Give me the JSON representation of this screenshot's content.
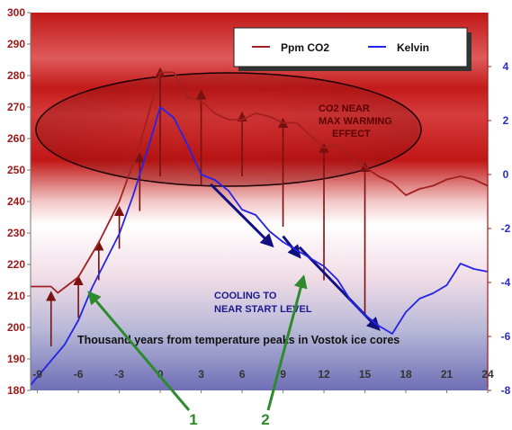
{
  "chart_data": {
    "type": "line",
    "title": "Thousand years from temperature peaks in Vostok ice cores",
    "x_ticks": [
      -9,
      -6,
      -3,
      0,
      3,
      6,
      9,
      12,
      15,
      18,
      21,
      24
    ],
    "xlim": [
      -9.5,
      24
    ],
    "left_axis": {
      "ylim": [
        180,
        300
      ],
      "ticks": [
        180,
        190,
        200,
        210,
        220,
        230,
        240,
        250,
        260,
        270,
        280,
        290,
        300
      ]
    },
    "right_axis": {
      "ylim": [
        -8,
        6
      ],
      "ticks": [
        -8,
        -6,
        -4,
        -2,
        0,
        2,
        4
      ]
    },
    "series": [
      {
        "name": "Ppm CO2",
        "axis": "left",
        "color": "#a32020",
        "x": [
          -9.5,
          -8,
          -7.5,
          -6,
          -4.5,
          -3,
          -1.5,
          0,
          1,
          2,
          3,
          4,
          5,
          6,
          7,
          8,
          9,
          10,
          11,
          12,
          13,
          14,
          15,
          16,
          17,
          18,
          19,
          20,
          21,
          22,
          23,
          24
        ],
        "y": [
          213,
          213,
          211,
          216,
          227,
          240,
          258,
          281,
          281,
          273,
          272,
          268,
          266,
          266,
          268,
          267,
          265,
          265,
          261,
          257,
          258,
          254,
          251,
          248,
          246,
          242,
          244,
          245,
          247,
          248,
          247,
          245
        ]
      },
      {
        "name": "Kelvin",
        "axis": "right",
        "color": "#2424e6",
        "x": [
          -9.5,
          -8,
          -7,
          -6,
          -5,
          -4,
          -3,
          -2,
          -1,
          0,
          1,
          2,
          3,
          4,
          5,
          6,
          7,
          8,
          9,
          10,
          11,
          12,
          13,
          14,
          15,
          16,
          17,
          18,
          19,
          20,
          21,
          22,
          23,
          24
        ],
        "y": [
          -7.8,
          -6.9,
          -6.3,
          -5.4,
          -4.2,
          -3.2,
          -2.2,
          -0.8,
          0.8,
          2.5,
          2.1,
          1.1,
          0,
          -0.2,
          -0.6,
          -1.3,
          -1.5,
          -2.1,
          -2.5,
          -2.8,
          -3.1,
          -3.4,
          -3.9,
          -4.7,
          -5.2,
          -5.6,
          -5.9,
          -5.1,
          -4.6,
          -4.4,
          -4.1,
          -3.3,
          -3.5,
          -3.6
        ]
      }
    ],
    "red_arrows": [
      {
        "x": -8,
        "from": 194,
        "to": 211
      },
      {
        "x": -6,
        "from": 203,
        "to": 216
      },
      {
        "x": -4.5,
        "from": 215,
        "to": 227
      },
      {
        "x": -3,
        "from": 225,
        "to": 238
      },
      {
        "x": -1.5,
        "from": 237,
        "to": 255
      },
      {
        "x": 0,
        "from": 248,
        "to": 282
      },
      {
        "x": 3,
        "from": 245,
        "to": 275
      },
      {
        "x": 6,
        "from": 248,
        "to": 268
      },
      {
        "x": 9,
        "from": 232,
        "to": 266
      },
      {
        "x": 12,
        "from": 215,
        "to": 258
      },
      {
        "x": 15,
        "from": 204,
        "to": 252
      }
    ],
    "cooling_arrows": [
      {
        "from": [
          3.7,
          245.5
        ],
        "to": [
          8.2,
          226
        ]
      },
      {
        "from": [
          9,
          229
        ],
        "to": [
          10.2,
          222.5
        ]
      },
      {
        "from": [
          10.2,
          225.5
        ],
        "to": [
          16,
          199.5
        ]
      }
    ],
    "callouts": [
      {
        "label": "1",
        "tip": [
          -5.2,
          211
        ]
      },
      {
        "label": "2",
        "tip": [
          10.5,
          216
        ]
      }
    ],
    "legend": {
      "entries": [
        "Ppm CO2",
        "Kelvin"
      ]
    },
    "annotations": {
      "co2_note_line1": "CO2 NEAR",
      "co2_note_line2": "MAX WARMING",
      "co2_note_line3": "EFFECT",
      "cooling_line1": "COOLING TO",
      "cooling_line2": "NEAR START LEVEL"
    }
  }
}
